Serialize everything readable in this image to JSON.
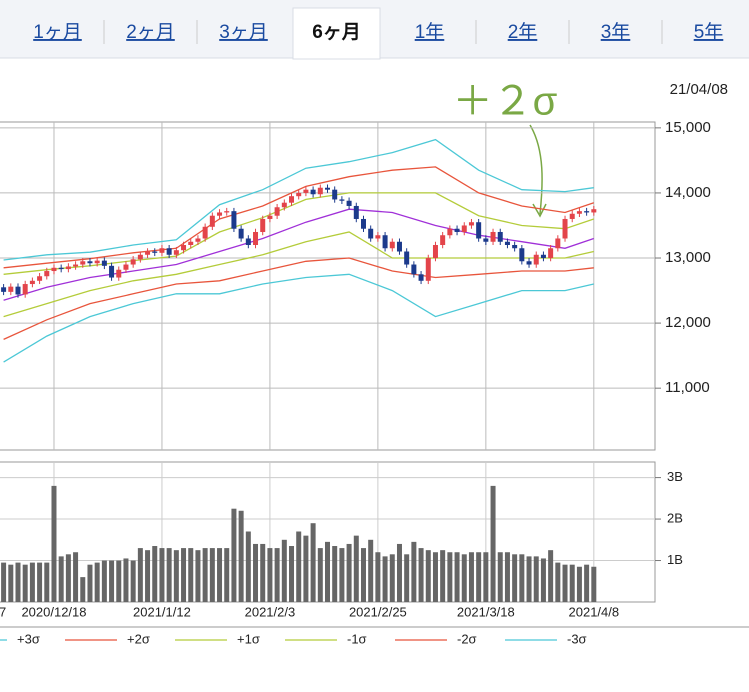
{
  "tabs": [
    "1ヶ月",
    "2ヶ月",
    "3ヶ月",
    "6ヶ月",
    "1年",
    "2年",
    "3年",
    "5年"
  ],
  "active_tab": 3,
  "date": "21/04/08",
  "annotation": "＋２σ",
  "x_label_fragment": "7",
  "chart_data": [
    {
      "type": "candlestick",
      "xlim": [
        -0.5,
        90.5
      ],
      "xticks": [
        7,
        22,
        37,
        52,
        67,
        82
      ],
      "ylim": [
        10050,
        15090
      ],
      "yticks": [
        {
          "value": 15000,
          "label": "15,000"
        },
        {
          "value": 14000,
          "label": "14,000"
        },
        {
          "value": 13000,
          "label": "13,000"
        },
        {
          "value": 12000,
          "label": "12,000"
        },
        {
          "value": 11000,
          "label": "11,000"
        }
      ],
      "grid": true,
      "up_color": "#e3444a",
      "down_color": "#1c3a8c",
      "open": [
        12550,
        12480,
        12560,
        12440,
        12600,
        12650,
        12720,
        12800,
        12850,
        12830,
        12870,
        12900,
        12950,
        12920,
        12960,
        12880,
        12700,
        12820,
        12900,
        12980,
        13050,
        13100,
        13080,
        13150,
        13050,
        13120,
        13200,
        13250,
        13300,
        13480,
        13650,
        13700,
        13720,
        13450,
        13300,
        13200,
        13400,
        13600,
        13650,
        13780,
        13850,
        13950,
        14000,
        14050,
        13980,
        14080,
        14050,
        13900,
        13880,
        13800,
        13600,
        13450,
        13300,
        13350,
        13150,
        13250,
        13100,
        12900,
        12750,
        12650,
        13000,
        13200,
        13350,
        13450,
        13400,
        13500,
        13550,
        13300,
        13250,
        13400,
        13250,
        13200,
        13150,
        12950,
        12900,
        13050,
        13000,
        13150,
        13300,
        13600,
        13680,
        13720,
        13700
      ],
      "high": [
        12600,
        12610,
        12610,
        12650,
        12700,
        12770,
        12850,
        12900,
        12900,
        12920,
        12950,
        13000,
        13000,
        13010,
        13010,
        12930,
        12870,
        12950,
        13030,
        13100,
        13150,
        13150,
        13200,
        13200,
        13170,
        13250,
        13300,
        13350,
        13530,
        13700,
        13750,
        13770,
        13770,
        13500,
        13350,
        13450,
        13650,
        13700,
        13830,
        13900,
        14000,
        14050,
        14100,
        14100,
        14130,
        14130,
        14100,
        13950,
        13930,
        13850,
        13650,
        13500,
        13400,
        13400,
        13300,
        13300,
        13150,
        12950,
        12800,
        13050,
        13250,
        13400,
        13500,
        13500,
        13550,
        13600,
        13600,
        13350,
        13450,
        13450,
        13300,
        13250,
        13200,
        13000,
        13100,
        13100,
        13200,
        13350,
        13650,
        13730,
        13770,
        13770,
        13800
      ],
      "low": [
        12430,
        12430,
        12390,
        12390,
        12550,
        12600,
        12670,
        12750,
        12780,
        12780,
        12820,
        12850,
        12870,
        12870,
        12830,
        12650,
        12650,
        12770,
        12850,
        12930,
        13000,
        13030,
        13030,
        13000,
        13000,
        13070,
        13150,
        13200,
        13250,
        13430,
        13600,
        13650,
        13400,
        13250,
        13150,
        13150,
        13350,
        13550,
        13600,
        13730,
        13800,
        13900,
        13950,
        13930,
        13930,
        14000,
        13850,
        13830,
        13750,
        13550,
        13400,
        13250,
        13250,
        13100,
        13100,
        13050,
        12850,
        12700,
        12600,
        12600,
        12950,
        13150,
        13300,
        13350,
        13350,
        13450,
        13250,
        13200,
        13200,
        13200,
        13150,
        13100,
        12900,
        12850,
        12850,
        12950,
        12950,
        13100,
        13250,
        13550,
        13630,
        13650,
        13650
      ],
      "close": [
        12480,
        12560,
        12440,
        12600,
        12650,
        12720,
        12800,
        12850,
        12830,
        12870,
        12900,
        12950,
        12920,
        12960,
        12880,
        12700,
        12820,
        12900,
        12980,
        13050,
        13100,
        13080,
        13150,
        13050,
        13120,
        13200,
        13250,
        13300,
        13480,
        13650,
        13700,
        13720,
        13450,
        13300,
        13200,
        13400,
        13600,
        13650,
        13780,
        13850,
        13950,
        14000,
        14050,
        13980,
        14080,
        14050,
        13900,
        13880,
        13800,
        13600,
        13450,
        13300,
        13350,
        13150,
        13250,
        13100,
        12900,
        12750,
        12650,
        13000,
        13200,
        13350,
        13450,
        13400,
        13500,
        13550,
        13300,
        13250,
        13400,
        13250,
        13200,
        13150,
        12950,
        12900,
        13050,
        13000,
        13150,
        13300,
        13600,
        13680,
        13720,
        13700,
        13750
      ],
      "series": [
        {
          "name": "+3σ",
          "color": "#4cc8d6",
          "x": [
            0,
            6,
            12,
            18,
            24,
            30,
            36,
            42,
            48,
            54,
            60,
            66,
            72,
            78,
            82
          ],
          "values": [
            12970,
            13050,
            13090,
            13200,
            13280,
            13820,
            14050,
            14380,
            14480,
            14620,
            14820,
            14350,
            14050,
            14020,
            14080
          ]
        },
        {
          "name": "+2σ",
          "color": "#e8553c",
          "x": [
            0,
            6,
            12,
            18,
            24,
            30,
            36,
            42,
            48,
            54,
            60,
            66,
            72,
            78,
            82
          ],
          "values": [
            12850,
            12920,
            12990,
            13080,
            13150,
            13600,
            13800,
            14100,
            14250,
            14350,
            14400,
            14000,
            13800,
            13700,
            13850
          ]
        },
        {
          "name": "+1σ",
          "color": "#b4cc3a",
          "x": [
            0,
            6,
            12,
            18,
            24,
            30,
            36,
            42,
            48,
            54,
            60,
            66,
            72,
            78,
            82
          ],
          "values": [
            12750,
            12820,
            12880,
            12960,
            13030,
            13400,
            13620,
            13900,
            14000,
            14000,
            14000,
            13650,
            13500,
            13450,
            13600
          ]
        },
        {
          "color": "#a030d8",
          "x": [
            0,
            6,
            12,
            18,
            24,
            30,
            36,
            42,
            48,
            54,
            60,
            66,
            72,
            78,
            82
          ],
          "values": [
            12350,
            12550,
            12700,
            12800,
            12900,
            13100,
            13300,
            13550,
            13750,
            13700,
            13500,
            13350,
            13250,
            13150,
            13300
          ]
        },
        {
          "name": "-1σ",
          "color": "#b4cc3a",
          "x": [
            0,
            6,
            12,
            18,
            24,
            30,
            36,
            42,
            48,
            54,
            60,
            66,
            72,
            78,
            82
          ],
          "values": [
            12100,
            12300,
            12500,
            12650,
            12750,
            12900,
            13050,
            13250,
            13400,
            13000,
            13000,
            13000,
            13000,
            13000,
            13100
          ]
        },
        {
          "name": "-2σ",
          "color": "#e8553c",
          "x": [
            0,
            6,
            12,
            18,
            24,
            30,
            36,
            42,
            48,
            54,
            60,
            66,
            72,
            78,
            82
          ],
          "values": [
            11750,
            12050,
            12300,
            12450,
            12600,
            12650,
            12800,
            12950,
            13000,
            12800,
            12700,
            12750,
            12800,
            12800,
            12850
          ]
        },
        {
          "name": "-3σ",
          "color": "#4cc8d6",
          "x": [
            0,
            6,
            12,
            18,
            24,
            30,
            36,
            42,
            48,
            54,
            60,
            66,
            72,
            78,
            82
          ],
          "values": [
            11400,
            11800,
            12100,
            12300,
            12450,
            12450,
            12600,
            12700,
            12750,
            12500,
            12100,
            12300,
            12500,
            12500,
            12600
          ]
        }
      ]
    },
    {
      "type": "bar",
      "color": "#666666",
      "xlim": [
        -0.5,
        90.5
      ],
      "xticks": [
        {
          "value": 7,
          "label": "2020/12/18"
        },
        {
          "value": 22,
          "label": "2021/1/12"
        },
        {
          "value": 37,
          "label": "2021/2/3"
        },
        {
          "value": 52,
          "label": "2021/2/25"
        },
        {
          "value": 67,
          "label": "2021/3/18"
        },
        {
          "value": 82,
          "label": "2021/4/8"
        }
      ],
      "ylim": [
        0,
        3.4
      ],
      "yticks": [
        {
          "value": 3,
          "label": "3B"
        },
        {
          "value": 2,
          "label": "2B"
        },
        {
          "value": 1,
          "label": "1B"
        }
      ],
      "grid": true,
      "values": [
        0.95,
        0.9,
        0.95,
        0.9,
        0.95,
        0.95,
        0.95,
        2.8,
        1.1,
        1.15,
        1.2,
        0.6,
        0.9,
        0.95,
        1.0,
        1.0,
        1.0,
        1.05,
        1.0,
        1.3,
        1.25,
        1.35,
        1.3,
        1.3,
        1.25,
        1.3,
        1.3,
        1.25,
        1.3,
        1.3,
        1.3,
        1.3,
        2.25,
        2.2,
        1.7,
        1.4,
        1.4,
        1.3,
        1.3,
        1.5,
        1.35,
        1.7,
        1.6,
        1.9,
        1.3,
        1.45,
        1.35,
        1.3,
        1.4,
        1.6,
        1.3,
        1.5,
        1.2,
        1.1,
        1.15,
        1.4,
        1.15,
        1.45,
        1.3,
        1.25,
        1.2,
        1.25,
        1.2,
        1.2,
        1.15,
        1.2,
        1.2,
        1.2,
        2.8,
        1.2,
        1.2,
        1.15,
        1.15,
        1.1,
        1.1,
        1.05,
        1.25,
        0.95,
        0.9,
        0.9,
        0.85,
        0.9,
        0.85
      ]
    }
  ]
}
